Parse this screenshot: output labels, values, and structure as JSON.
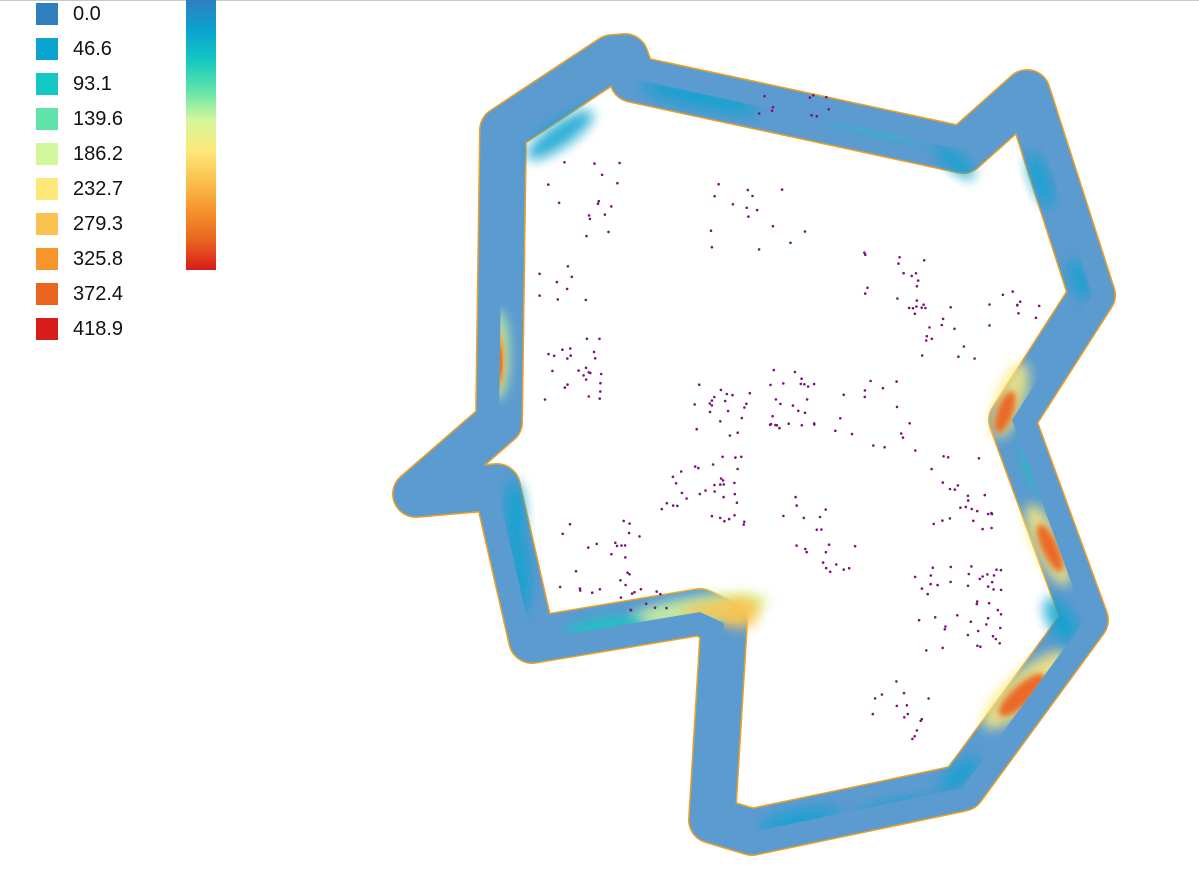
{
  "legend": {
    "items": [
      {
        "label": "0.0",
        "color": "#2f7fbf"
      },
      {
        "label": "46.6",
        "color": "#0aa2cf"
      },
      {
        "label": "93.1",
        "color": "#13c8c2"
      },
      {
        "label": "139.6",
        "color": "#5fe3a9"
      },
      {
        "label": "186.2",
        "color": "#d3f79b"
      },
      {
        "label": "232.7",
        "color": "#fde97a"
      },
      {
        "label": "279.3",
        "color": "#fbc24f"
      },
      {
        "label": "325.8",
        "color": "#f6952c"
      },
      {
        "label": "372.4",
        "color": "#ea6520"
      },
      {
        "label": "418.9",
        "color": "#d81c1c"
      }
    ]
  },
  "colors": {
    "road_base": "#5b9bd0",
    "road_outline": "#f0a020",
    "points": "#7a127a"
  },
  "colorbar": {
    "gradient": [
      "#2f7fbf",
      "#0aa2cf",
      "#13c8c2",
      "#5fe3a9",
      "#d3f79b",
      "#fde97a",
      "#fbc24f",
      "#f6952c",
      "#ea6520",
      "#d81c1c"
    ]
  }
}
